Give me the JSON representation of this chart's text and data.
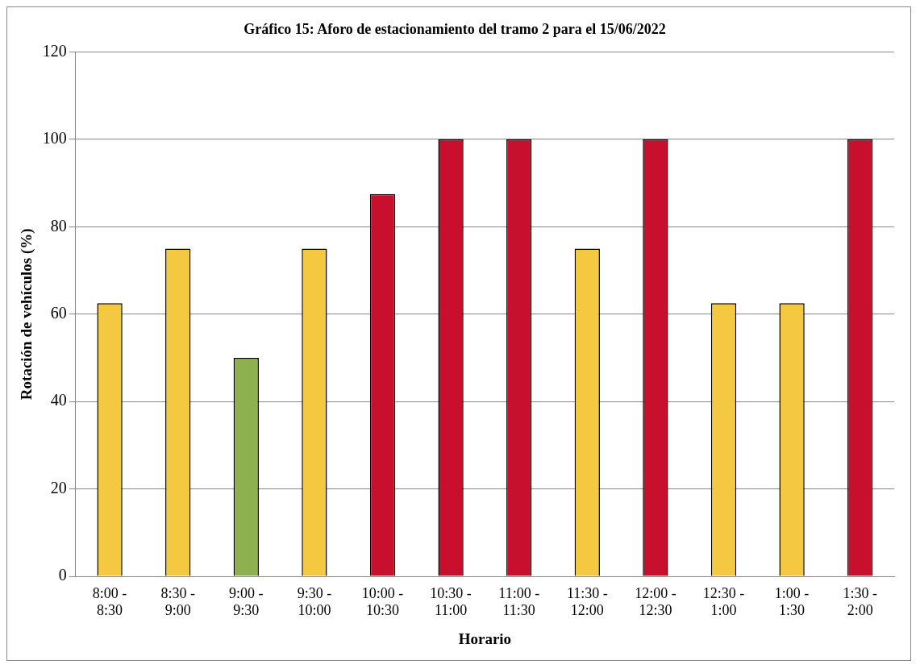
{
  "chart_data": {
    "type": "bar",
    "title": "Gráfico 15: Aforo de estacionamiento del tramo 2 para el 15/06/2022",
    "xlabel": "Horario",
    "ylabel": "Rotación de vehículos (%)",
    "categories": [
      "8:00 - 8:30",
      "8:30 - 9:00",
      "9:00 - 9:30",
      "9:30 - 10:00",
      "10:00 - 10:30",
      "10:30 - 11:00",
      "11:00 - 11:30",
      "11:30 - 12:00",
      "12:00 - 12:30",
      "12:30 - 1:00",
      "1:00 - 1:30",
      "1:30 - 2:00"
    ],
    "values": [
      62.5,
      75,
      50,
      75,
      87.5,
      100,
      100,
      75,
      100,
      62.5,
      62.5,
      100
    ],
    "colors": [
      "#f5c842",
      "#f5c842",
      "#8fb04e",
      "#f5c842",
      "#c8102e",
      "#c8102e",
      "#c8102e",
      "#f5c842",
      "#c8102e",
      "#f5c842",
      "#f5c842",
      "#c8102e"
    ],
    "ylim": [
      0,
      120
    ],
    "yticks": [
      0,
      20,
      40,
      60,
      80,
      100,
      120
    ],
    "grid": "y",
    "legend": false
  }
}
